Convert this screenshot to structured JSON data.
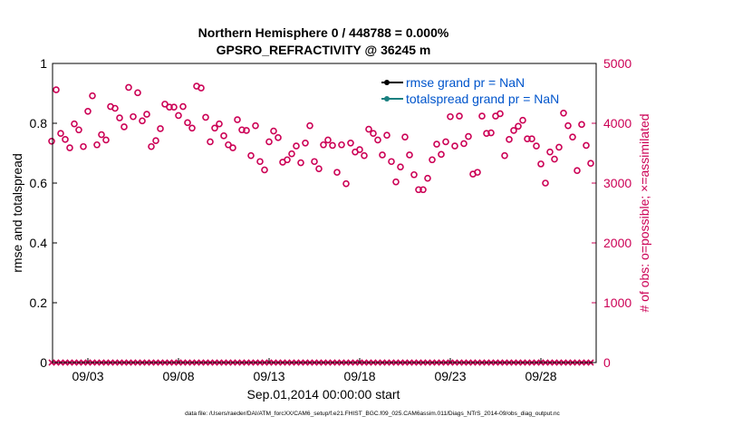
{
  "chart_data": {
    "type": "scatter",
    "title_line1": "Northern Hemisphere 0 / 448788 = 0.000%",
    "title_line2": "GPSRO_REFRACTIVITY @ 36245 m",
    "ylabel_left": "rmse and totalspread",
    "ylabel_right": "# of obs: o=possible; ×=assimilated",
    "xlabel": "Sep.01,2014 00:00:00 start",
    "footer": "data file: /Users/raeder/DAI/ATM_forcXX/CAM6_setup/f.e21.FHIST_BGC.f09_025.CAM6assim.011/Diags_NTrS_2014-09/obs_diag_output.nc",
    "left_ylim": [
      0,
      1
    ],
    "left_yticks": [
      "0",
      "0.2",
      "0.4",
      "0.6",
      "0.8",
      "1"
    ],
    "right_ylim": [
      0,
      5000
    ],
    "right_yticks": [
      "0",
      "1000",
      "2000",
      "3000",
      "4000",
      "5000"
    ],
    "xlim": [
      1.05,
      31.05
    ],
    "xticks": [
      {
        "value": 3,
        "label": "09/03"
      },
      {
        "value": 8,
        "label": "09/08"
      },
      {
        "value": 13,
        "label": "09/13"
      },
      {
        "value": 18,
        "label": "09/18"
      },
      {
        "value": 23,
        "label": "09/23"
      },
      {
        "value": 28,
        "label": "09/28"
      }
    ],
    "legend": [
      {
        "label": "rmse grand pr = NaN",
        "color": "#000000"
      },
      {
        "label": "totalspread grand pr = NaN",
        "color": "#1a8080"
      }
    ],
    "x_start": 1.0,
    "x_step": 0.25,
    "obs_possible": [
      3700,
      4560,
      3830,
      3730,
      3590,
      3990,
      3890,
      3610,
      4200,
      4460,
      3640,
      3810,
      3720,
      4280,
      4250,
      4090,
      3940,
      4600,
      4110,
      4510,
      4040,
      4150,
      3610,
      3710,
      3910,
      4320,
      4270,
      4270,
      4130,
      4280,
      4010,
      3920,
      4620,
      4590,
      4100,
      3690,
      3920,
      3990,
      3790,
      3640,
      3590,
      4060,
      3890,
      3880,
      3460,
      3960,
      3360,
      3220,
      3690,
      3870,
      3760,
      3350,
      3390,
      3490,
      3620,
      3340,
      3670,
      3960,
      3360,
      3240,
      3640,
      3720,
      3630,
      3180,
      3640,
      2990,
      3670,
      3520,
      3560,
      3460,
      3900,
      3830,
      3720,
      3470,
      3800,
      3360,
      3020,
      3270,
      3770,
      3470,
      3140,
      2890,
      2890,
      3080,
      3390,
      3650,
      3480,
      3690,
      4110,
      3620,
      4120,
      3660,
      3780,
      3150,
      3180,
      4120,
      3830,
      3840,
      4120,
      4160,
      3460,
      3730,
      3880,
      3950,
      4050,
      3740,
      3740,
      3620,
      3320,
      3000,
      3520,
      3400,
      3600,
      4170,
      3960,
      3770,
      3210,
      3980,
      3630,
      3330
    ]
  }
}
